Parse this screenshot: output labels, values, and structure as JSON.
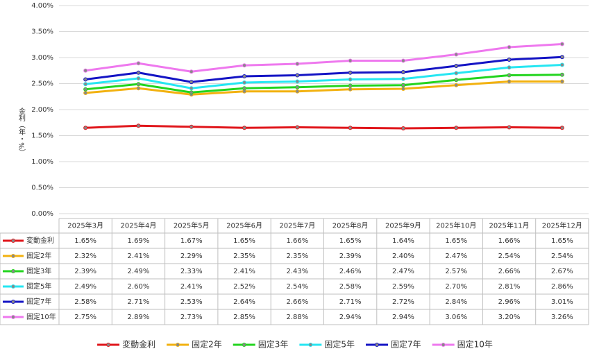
{
  "chart_data": {
    "type": "line",
    "y_label": "金利（年・%）",
    "categories": [
      "2025年3月",
      "2025年4月",
      "2025年5月",
      "2025年6月",
      "2025年7月",
      "2025年8月",
      "2025年9月",
      "2025年10月",
      "2025年11月",
      "2025年12月"
    ],
    "ylim": [
      0,
      4
    ],
    "yticks": [
      {
        "value": 0,
        "label": "0.00%"
      },
      {
        "value": 0.5,
        "label": "0.50%"
      },
      {
        "value": 1,
        "label": "1.00%"
      },
      {
        "value": 1.5,
        "label": "1.50%"
      },
      {
        "value": 2,
        "label": "2.00%"
      },
      {
        "value": 2.5,
        "label": "2.50%"
      },
      {
        "value": 3,
        "label": "3.00%"
      },
      {
        "value": 3.5,
        "label": "3.50%"
      },
      {
        "value": 4,
        "label": "4.00%"
      }
    ],
    "grid": true,
    "legend": "bottom",
    "series": [
      {
        "name": "変動金利",
        "color": "#e0161b",
        "values": [
          1.65,
          1.69,
          1.67,
          1.65,
          1.66,
          1.65,
          1.64,
          1.65,
          1.66,
          1.65
        ],
        "value_labels": [
          "1.65%",
          "1.69%",
          "1.67%",
          "1.65%",
          "1.66%",
          "1.65%",
          "1.64%",
          "1.65%",
          "1.66%",
          "1.65%"
        ]
      },
      {
        "name": "固定2年",
        "color": "#f2b10f",
        "values": [
          2.32,
          2.41,
          2.29,
          2.35,
          2.35,
          2.39,
          2.4,
          2.47,
          2.54,
          2.54
        ],
        "value_labels": [
          "2.32%",
          "2.41%",
          "2.29%",
          "2.35%",
          "2.35%",
          "2.39%",
          "2.40%",
          "2.47%",
          "2.54%",
          "2.54%"
        ]
      },
      {
        "name": "固定3年",
        "color": "#22d41e",
        "values": [
          2.39,
          2.49,
          2.33,
          2.41,
          2.43,
          2.46,
          2.47,
          2.57,
          2.66,
          2.67
        ],
        "value_labels": [
          "2.39%",
          "2.49%",
          "2.33%",
          "2.41%",
          "2.43%",
          "2.46%",
          "2.47%",
          "2.57%",
          "2.66%",
          "2.67%"
        ]
      },
      {
        "name": "固定5年",
        "color": "#25e6f2",
        "values": [
          2.49,
          2.6,
          2.41,
          2.52,
          2.54,
          2.58,
          2.59,
          2.7,
          2.81,
          2.86
        ],
        "value_labels": [
          "2.49%",
          "2.60%",
          "2.41%",
          "2.52%",
          "2.54%",
          "2.58%",
          "2.59%",
          "2.70%",
          "2.81%",
          "2.86%"
        ]
      },
      {
        "name": "固定7年",
        "color": "#1414c4",
        "values": [
          2.58,
          2.71,
          2.53,
          2.64,
          2.66,
          2.71,
          2.72,
          2.84,
          2.96,
          3.01
        ],
        "value_labels": [
          "2.58%",
          "2.71%",
          "2.53%",
          "2.64%",
          "2.66%",
          "2.71%",
          "2.72%",
          "2.84%",
          "2.96%",
          "3.01%"
        ]
      },
      {
        "name": "固定10年",
        "color": "#ee78ee",
        "values": [
          2.75,
          2.89,
          2.73,
          2.85,
          2.88,
          2.94,
          2.94,
          3.06,
          3.2,
          3.26
        ],
        "value_labels": [
          "2.75%",
          "2.89%",
          "2.73%",
          "2.85%",
          "2.88%",
          "2.94%",
          "2.94%",
          "3.06%",
          "3.20%",
          "3.26%"
        ]
      }
    ]
  }
}
